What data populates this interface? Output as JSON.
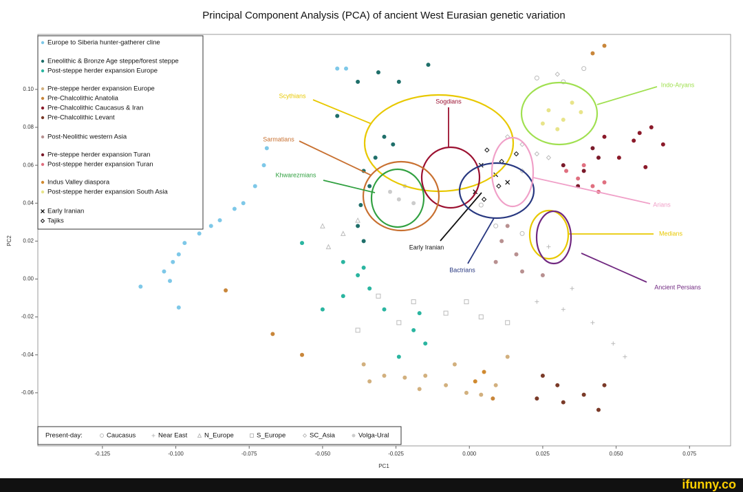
{
  "chart_data": {
    "type": "scatter",
    "title": "Principal Component Analysis (PCA) of ancient West Eurasian genetic variation",
    "x_label": "PC1",
    "y_label": "PC2",
    "xlim": [
      -0.147,
      0.089
    ],
    "ylim": [
      -0.088,
      0.129
    ],
    "xticks": [
      -0.125,
      {
        "value": -0.1,
        "label": "-0.100"
      },
      -0.075,
      {
        "value": -0.05,
        "label": "-0.050"
      },
      -0.025,
      {
        "value": 0,
        "label": "0.000"
      },
      0.025,
      {
        "value": 0.05,
        "label": "0.050"
      },
      0.075
    ],
    "yticks": [
      {
        "value": 0.1,
        "label": "0.10"
      },
      0.08,
      0.06,
      0.04,
      0.02,
      {
        "value": 0,
        "label": "0.00"
      },
      -0.02,
      -0.04,
      -0.06
    ],
    "present_day_label": "Present-day:",
    "series": [
      {
        "name": "Europe to Siberia hunter-gatherer cline",
        "color": "#7ec8e8",
        "marker": "dot",
        "x": [
          -0.112,
          -0.104,
          -0.101,
          -0.099,
          -0.097,
          -0.092,
          -0.088,
          -0.085,
          -0.08,
          -0.077,
          -0.073,
          -0.07,
          -0.069,
          -0.102,
          -0.099,
          -0.042,
          -0.045
        ],
        "y": [
          -0.004,
          0.004,
          0.009,
          0.013,
          0.019,
          0.024,
          0.028,
          0.031,
          0.037,
          0.04,
          0.049,
          0.06,
          0.069,
          -0.001,
          -0.015,
          0.111,
          0.111
        ]
      },
      {
        "name": "Eneolithic & Bronze Age steppe/forest steppe",
        "color": "#1f6f6a",
        "marker": "dot",
        "x": [
          -0.036,
          -0.034,
          -0.037,
          -0.038,
          -0.036,
          -0.032,
          -0.029,
          -0.026,
          -0.031,
          -0.014,
          -0.024,
          -0.038,
          -0.045
        ],
        "y": [
          0.057,
          0.049,
          0.039,
          0.028,
          0.02,
          0.064,
          0.075,
          0.071,
          0.109,
          0.113,
          0.104,
          0.104,
          0.086
        ]
      },
      {
        "name": "Post-steppe herder expansion Europe",
        "color": "#2ab5a0",
        "marker": "dot",
        "x": [
          -0.057,
          -0.043,
          -0.038,
          -0.034,
          -0.029,
          -0.019,
          -0.015,
          -0.043,
          -0.05,
          -0.024,
          -0.036,
          -0.017
        ],
        "y": [
          0.019,
          0.009,
          0.002,
          -0.005,
          -0.016,
          -0.027,
          -0.034,
          -0.009,
          -0.016,
          -0.041,
          0.006,
          -0.018
        ]
      },
      {
        "name": "Pre-steppe herder expansion Europe",
        "color": "#d2b07e",
        "marker": "dot",
        "x": [
          -0.036,
          -0.029,
          -0.022,
          -0.015,
          -0.008,
          -0.001,
          0.004,
          0.009,
          -0.034,
          -0.017,
          -0.005,
          0.013
        ],
        "y": [
          -0.045,
          -0.051,
          -0.052,
          -0.051,
          -0.056,
          -0.06,
          -0.061,
          -0.056,
          -0.054,
          -0.058,
          -0.045,
          -0.041
        ]
      },
      {
        "name": "Pre-Chalcolithic Anatolia",
        "color": "#c8863a",
        "marker": "dot",
        "x": [
          -0.083,
          -0.067,
          -0.057,
          0.008,
          0.042,
          0.046
        ],
        "y": [
          -0.006,
          -0.029,
          -0.04,
          -0.063,
          0.119,
          0.123
        ]
      },
      {
        "name": "Pre-Chalcolithic Caucasus & Iran",
        "color": "#8b1a2a",
        "marker": "dot",
        "x": [
          0.046,
          0.058,
          0.062,
          0.066,
          0.051,
          0.06,
          0.056
        ],
        "y": [
          0.075,
          0.077,
          0.08,
          0.071,
          0.064,
          0.059,
          0.073
        ]
      },
      {
        "name": "Pre-Chalcolithic Levant",
        "color": "#7a3a28",
        "marker": "dot",
        "x": [
          0.025,
          0.03,
          0.039,
          0.044,
          0.046,
          0.032,
          0.023
        ],
        "y": [
          -0.051,
          -0.056,
          -0.061,
          -0.069,
          -0.056,
          -0.065,
          -0.063
        ]
      },
      {
        "name": "Post-Neolithic western Asia",
        "color": "#b89090",
        "marker": "dot",
        "x": [
          0.011,
          0.016,
          0.009,
          0.018,
          0.025,
          0.013
        ],
        "y": [
          0.02,
          0.013,
          0.009,
          0.004,
          0.002,
          0.028
        ]
      },
      {
        "name": "Pre-steppe herder expansion Turan",
        "color": "#7a1a2a",
        "marker": "dot",
        "x": [
          0.032,
          0.039,
          0.044,
          0.037,
          0.042
        ],
        "y": [
          0.06,
          0.057,
          0.064,
          0.049,
          0.069
        ]
      },
      {
        "name": "Post-steppe herder expansion Turan",
        "color": "#e07080",
        "marker": "dot",
        "x": [
          0.037,
          0.042,
          0.046,
          0.044,
          0.039,
          0.033
        ],
        "y": [
          0.053,
          0.049,
          0.051,
          0.046,
          0.06,
          0.057
        ]
      },
      {
        "name": "Indus Valley diaspora",
        "color": "#d08a30",
        "marker": "dot",
        "x": [
          0.002,
          0.005
        ],
        "y": [
          -0.054,
          -0.049
        ]
      },
      {
        "name": "Post-steppe herder expansion South Asia",
        "color": "#e8e48a",
        "marker": "dot",
        "x": [
          0.027,
          0.032,
          0.025,
          0.035,
          0.03,
          0.038
        ],
        "y": [
          0.089,
          0.084,
          0.082,
          0.093,
          0.079,
          0.088
        ]
      },
      {
        "name": "Early Iranian",
        "color": "#111111",
        "marker": "x",
        "x": [
          0.004,
          0.009,
          0.002,
          0.013
        ],
        "y": [
          0.06,
          0.055,
          0.046,
          0.051
        ]
      },
      {
        "name": "Tajiks",
        "color": "#111111",
        "marker": "diamond",
        "x": [
          0.006,
          0.011,
          0.005,
          0.016,
          0.01
        ],
        "y": [
          0.068,
          0.062,
          0.042,
          0.066,
          0.049
        ]
      },
      {
        "name": "Caucasus",
        "color": "#bbbbbb",
        "marker": "circle",
        "x": [
          0.023,
          0.032,
          0.039,
          0.009,
          0.018,
          0.004
        ],
        "y": [
          0.106,
          0.104,
          0.111,
          0.028,
          0.024,
          0.039
        ]
      },
      {
        "name": "Near East",
        "color": "#bbbbbb",
        "marker": "plus",
        "x": [
          0.027,
          0.035,
          0.042,
          0.049,
          0.053,
          0.032,
          0.023
        ],
        "y": [
          0.017,
          -0.005,
          -0.023,
          -0.034,
          -0.041,
          -0.016,
          -0.012
        ]
      },
      {
        "name": "N_Europe",
        "color": "#bbbbbb",
        "marker": "triangle",
        "x": [
          -0.05,
          -0.043,
          -0.048,
          -0.038
        ],
        "y": [
          0.028,
          0.024,
          0.017,
          0.031
        ]
      },
      {
        "name": "S_Europe",
        "color": "#bbbbbb",
        "marker": "square",
        "x": [
          -0.031,
          -0.019,
          -0.008,
          0.004,
          0.013,
          -0.038,
          -0.024,
          -0.001
        ],
        "y": [
          -0.009,
          -0.012,
          -0.018,
          -0.02,
          -0.023,
          -0.027,
          -0.023,
          -0.012
        ]
      },
      {
        "name": "SC_Asia",
        "color": "#bbbbbb",
        "marker": "diamond",
        "x": [
          0.018,
          0.023,
          0.013,
          0.027,
          0.018,
          0.03
        ],
        "y": [
          0.071,
          0.066,
          0.075,
          0.064,
          0.057,
          0.108
        ]
      },
      {
        "name": "Volga-Ural",
        "color": "#cccccc",
        "marker": "dot",
        "x": [
          -0.027,
          -0.024,
          -0.022,
          -0.019
        ],
        "y": [
          0.046,
          0.042,
          0.049,
          0.04
        ]
      }
    ],
    "annotations": [
      {
        "text": "Scythians",
        "color": "#e8c800"
      },
      {
        "text": "Sogdians",
        "color": "#9b1030"
      },
      {
        "text": "Sarmatians",
        "color": "#c87030"
      },
      {
        "text": "Khwarezmians",
        "color": "#30a040"
      },
      {
        "text": "Early Iranian",
        "color": "#111111"
      },
      {
        "text": "Bactrians",
        "color": "#283880"
      },
      {
        "text": "Indo-Aryans",
        "color": "#a0e050"
      },
      {
        "text": "Arians",
        "color": "#f0a0c8"
      },
      {
        "text": "Medians",
        "color": "#e8c800"
      },
      {
        "text": "Ancient Persians",
        "color": "#702880"
      }
    ]
  },
  "watermark": "ifunny.co"
}
